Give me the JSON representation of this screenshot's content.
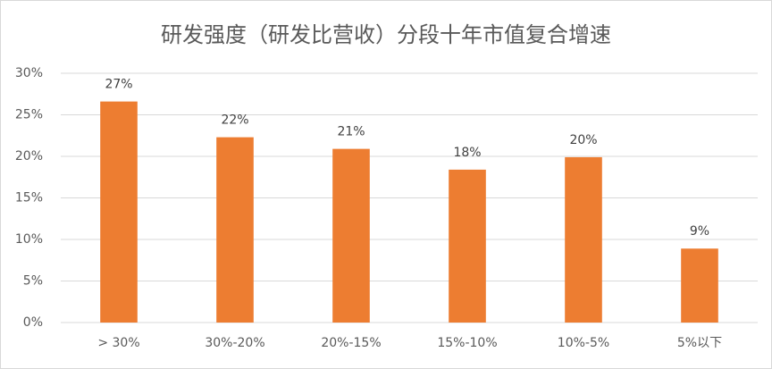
{
  "chart_data": {
    "type": "bar",
    "title": "研发强度（研发比营收）分段十年市值复合增速",
    "categories": [
      "> 30%",
      "30%-20%",
      "20%-15%",
      "15%-10%",
      "10%-5%",
      "5%以下"
    ],
    "values": [
      26.6,
      22.3,
      20.9,
      18.4,
      19.9,
      8.9
    ],
    "value_labels": [
      "27%",
      "22%",
      "21%",
      "18%",
      "20%",
      "9%"
    ],
    "color": "#ed7d31",
    "ylim": [
      0,
      30
    ],
    "yticks": [
      {
        "value": 0,
        "label": "0%"
      },
      {
        "value": 5,
        "label": "5%"
      },
      {
        "value": 10,
        "label": "10%"
      },
      {
        "value": 15,
        "label": "15%"
      },
      {
        "value": 20,
        "label": "20%"
      },
      {
        "value": 25,
        "label": "25%"
      },
      {
        "value": 30,
        "label": "30%"
      }
    ],
    "grid": true
  }
}
